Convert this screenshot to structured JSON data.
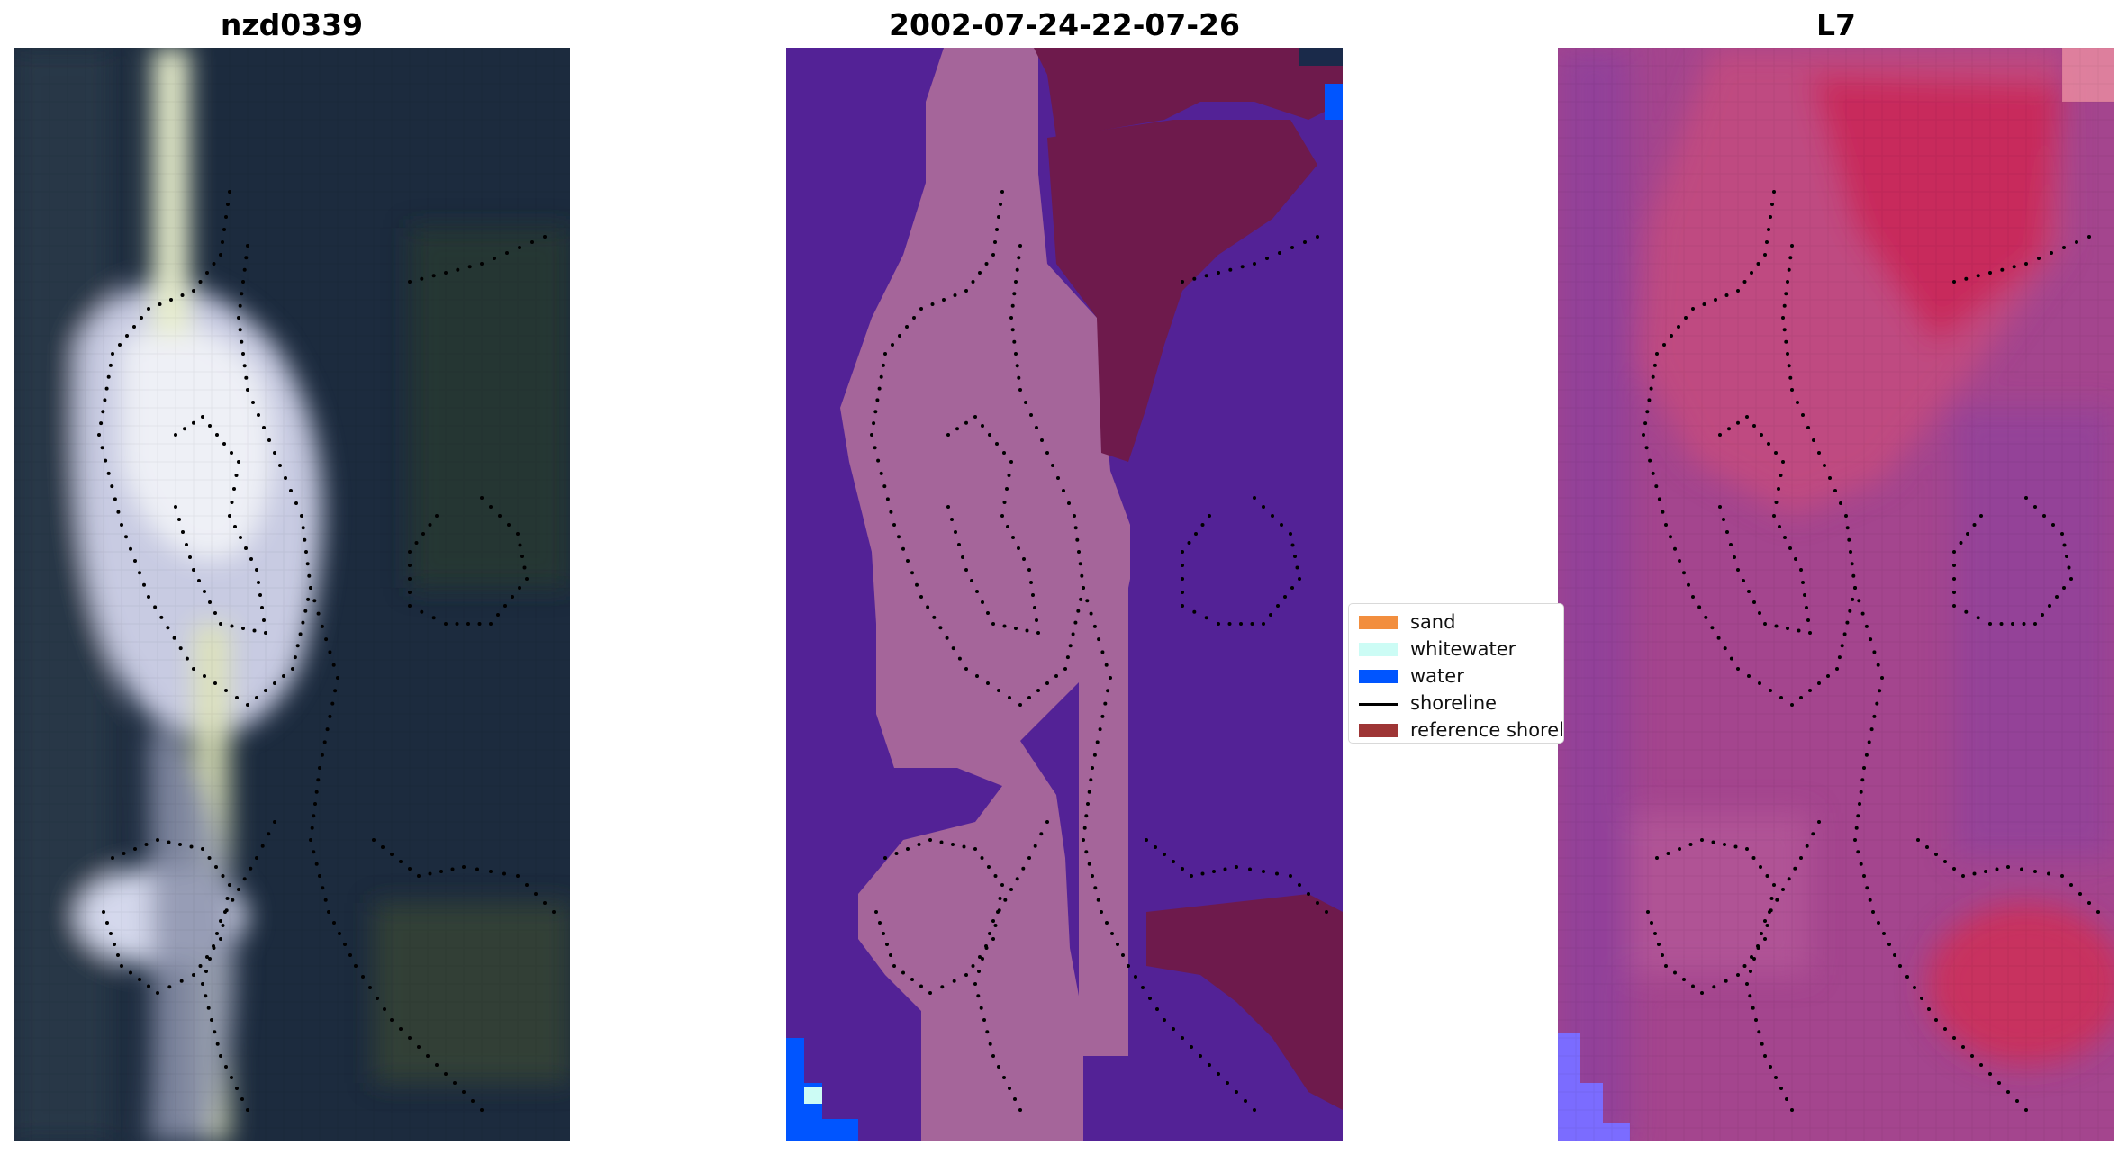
{
  "panels": [
    {
      "title": "nzd0339"
    },
    {
      "title": "2002-07-24-22-07-26"
    },
    {
      "title": "L7"
    }
  ],
  "legend": {
    "items": [
      {
        "label": "sand",
        "color": "#f28e3e",
        "kind": "patch"
      },
      {
        "label": "whitewater",
        "color": "#ccfcf5",
        "kind": "patch"
      },
      {
        "label": "water",
        "color": "#0055ff",
        "kind": "patch"
      },
      {
        "label": "shoreline",
        "color": "#000000",
        "kind": "line"
      },
      {
        "label": "reference shoreline",
        "color": "#9e3535",
        "kind": "patch"
      }
    ]
  },
  "colors": {
    "rgb_water": "#1b2a40",
    "rgb_sand": "#e3e4ea",
    "class_other": "#532296",
    "class_land": "#a5659a",
    "class_reference": "#6e1a4c",
    "class_water": "#0055ff",
    "mndwi_low": "#a4458e",
    "mndwi_high": "#c82a5c"
  }
}
